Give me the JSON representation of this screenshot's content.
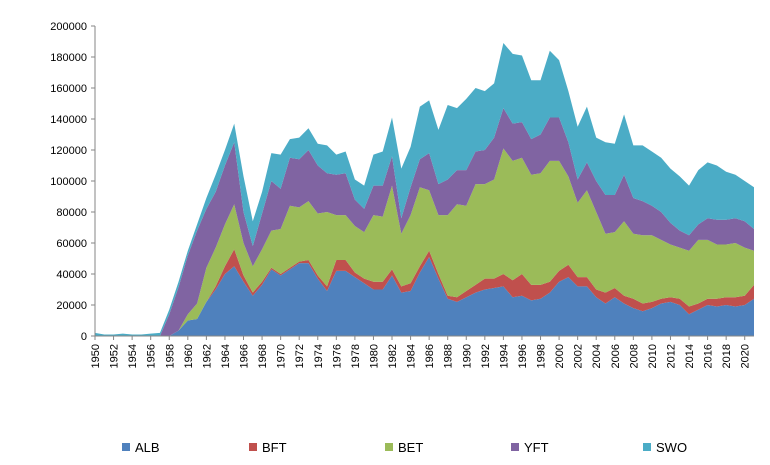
{
  "chart_data": {
    "type": "area",
    "stacked": true,
    "title": "",
    "xlabel": "",
    "ylabel": "",
    "ylim": [
      0,
      200000
    ],
    "yticks": [
      0,
      20000,
      40000,
      60000,
      80000,
      100000,
      120000,
      140000,
      160000,
      180000,
      200000
    ],
    "ytick_labels": [
      "0",
      "20000",
      "40000",
      "60000",
      "80000",
      "100000",
      "120000",
      "140000",
      "160000",
      "180000",
      "200000"
    ],
    "xlim": [
      1950,
      2021
    ],
    "xtick_labels": [
      "1950",
      "1952",
      "1954",
      "1956",
      "1958",
      "1960",
      "1962",
      "1964",
      "1966",
      "1968",
      "1970",
      "1972",
      "1974",
      "1976",
      "1978",
      "1980",
      "1982",
      "1984",
      "1986",
      "1988",
      "1990",
      "1992",
      "1994",
      "1996",
      "1998",
      "2000",
      "2002",
      "2004",
      "2006",
      "2008",
      "2010",
      "2012",
      "2014",
      "2016",
      "2018",
      "2020"
    ],
    "grid": false,
    "legend_position": "bottom",
    "x": [
      1950,
      1951,
      1952,
      1953,
      1954,
      1955,
      1956,
      1957,
      1958,
      1959,
      1960,
      1961,
      1962,
      1963,
      1964,
      1965,
      1966,
      1967,
      1968,
      1969,
      1970,
      1971,
      1972,
      1973,
      1974,
      1975,
      1976,
      1977,
      1978,
      1979,
      1980,
      1981,
      1982,
      1983,
      1984,
      1985,
      1986,
      1987,
      1988,
      1989,
      1990,
      1991,
      1992,
      1993,
      1994,
      1995,
      1996,
      1997,
      1998,
      1999,
      2000,
      2001,
      2002,
      2003,
      2004,
      2005,
      2006,
      2007,
      2008,
      2009,
      2010,
      2011,
      2012,
      2013,
      2014,
      2015,
      2016,
      2017,
      2018,
      2019,
      2020,
      2021
    ],
    "series": [
      {
        "name": "ALB",
        "color": "#4F81BD",
        "values": [
          0,
          0,
          0,
          0,
          0,
          0,
          0,
          0,
          0,
          3500,
          10000,
          11000,
          22000,
          30000,
          40000,
          45000,
          35000,
          26000,
          33000,
          43000,
          39000,
          43000,
          47000,
          47000,
          37000,
          29000,
          42000,
          42000,
          38000,
          34000,
          30000,
          30000,
          39000,
          28000,
          29000,
          41000,
          51000,
          37000,
          24000,
          22000,
          25000,
          28000,
          30000,
          31000,
          32000,
          25000,
          26000,
          23000,
          24000,
          28000,
          35000,
          38000,
          32000,
          32000,
          25000,
          21000,
          25000,
          21000,
          18000,
          16000,
          18000,
          21000,
          22000,
          20000,
          14000,
          17000,
          20000,
          19000,
          20000,
          19000,
          20000,
          24000
        ]
      },
      {
        "name": "BFT",
        "color": "#C0504D",
        "values": [
          0,
          0,
          0,
          0,
          0,
          0,
          0,
          0,
          0,
          0,
          0,
          0,
          0,
          2000,
          5000,
          11000,
          4000,
          2000,
          2000,
          1000,
          1000,
          1000,
          1000,
          2000,
          2000,
          3000,
          7000,
          7000,
          3000,
          3000,
          5000,
          5000,
          4000,
          4000,
          5000,
          4000,
          4000,
          3000,
          2000,
          3000,
          4000,
          5000,
          7000,
          6000,
          8000,
          11000,
          14000,
          10000,
          9000,
          7000,
          7000,
          8000,
          6000,
          6000,
          5000,
          7000,
          6000,
          5000,
          6000,
          5000,
          4000,
          3000,
          3000,
          4000,
          5000,
          4000,
          4000,
          5000,
          5000,
          6000,
          6000,
          9000
        ]
      },
      {
        "name": "BET",
        "color": "#9BBB59",
        "values": [
          0,
          0,
          0,
          0,
          0,
          0,
          0,
          0,
          0,
          0,
          4000,
          10000,
          22000,
          25000,
          27000,
          29000,
          21000,
          17000,
          21000,
          24000,
          29000,
          40000,
          35000,
          38000,
          40000,
          48000,
          29000,
          29000,
          30000,
          30000,
          43000,
          42000,
          54000,
          34000,
          44000,
          51000,
          39000,
          38000,
          52000,
          60000,
          55000,
          65000,
          61000,
          64000,
          81000,
          77000,
          75000,
          71000,
          72000,
          78000,
          71000,
          57000,
          48000,
          56000,
          50000,
          38000,
          36000,
          48000,
          42000,
          44000,
          43000,
          38000,
          34000,
          33000,
          36000,
          41000,
          38000,
          35000,
          34000,
          35000,
          31000,
          22000
        ]
      },
      {
        "name": "YFT",
        "color": "#8064A2",
        "values": [
          0,
          0,
          0,
          0,
          0,
          0,
          0,
          0,
          14000,
          28000,
          38000,
          47000,
          38000,
          36000,
          38000,
          40000,
          20000,
          13000,
          23000,
          32000,
          26000,
          31000,
          31000,
          33000,
          31000,
          25000,
          26000,
          27000,
          17000,
          15000,
          19000,
          20000,
          19000,
          10000,
          18000,
          18000,
          24000,
          20000,
          23000,
          22000,
          23000,
          21000,
          22000,
          27000,
          26000,
          24000,
          23000,
          23000,
          25000,
          28000,
          28000,
          22000,
          15000,
          18000,
          20000,
          25000,
          24000,
          30000,
          23000,
          22000,
          19000,
          18000,
          14000,
          11000,
          10000,
          10000,
          14000,
          16000,
          16000,
          16000,
          17000,
          14000
        ]
      },
      {
        "name": "SWO",
        "color": "#4BACC6",
        "values": [
          2000,
          1000,
          1000,
          1500,
          1000,
          1000,
          1500,
          2000,
          3000,
          3500,
          3000,
          4000,
          7000,
          11000,
          10000,
          12000,
          23000,
          16000,
          14000,
          18000,
          22000,
          12000,
          14000,
          14000,
          14000,
          18000,
          13000,
          14000,
          13000,
          15000,
          20000,
          22000,
          25000,
          32000,
          26000,
          34000,
          34000,
          35000,
          48000,
          40000,
          46000,
          41000,
          38000,
          35000,
          42000,
          45000,
          43000,
          38000,
          35000,
          43000,
          37000,
          33000,
          34000,
          36000,
          28000,
          34000,
          33000,
          39000,
          34000,
          36000,
          35000,
          35000,
          35000,
          35000,
          32000,
          35000,
          36000,
          35000,
          31000,
          28000,
          26000,
          27000
        ]
      }
    ]
  }
}
